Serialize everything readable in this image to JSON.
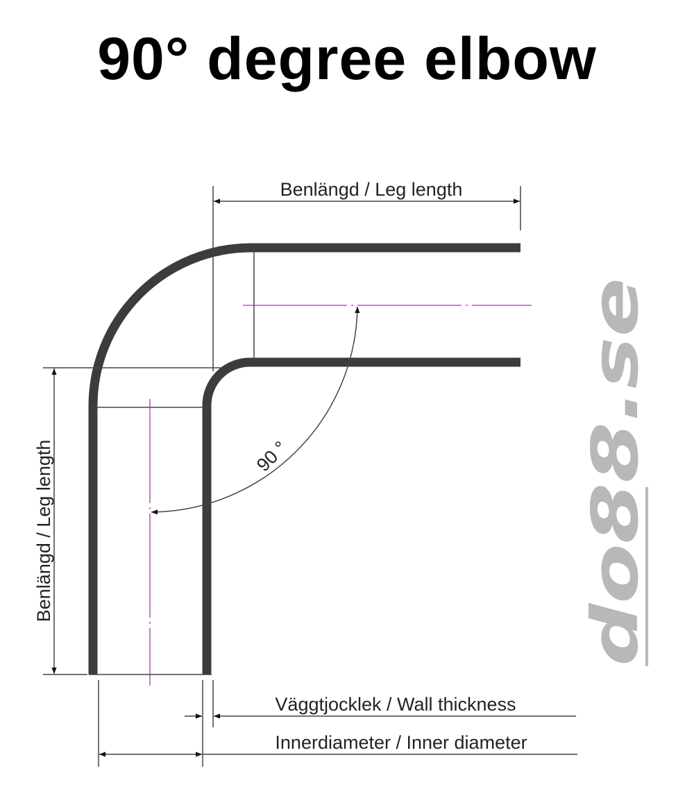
{
  "title": "90° degree elbow",
  "labels": {
    "leg_length_top": "Benlängd / Leg length",
    "leg_length_side": "Benlängd / Leg length",
    "angle": "90 °",
    "wall_thickness": "Väggtjocklek / Wall thickness",
    "inner_diameter": "Innerdiameter / Inner diameter"
  },
  "logo": {
    "text": "do88.se",
    "color": "#b8b8b8"
  },
  "colors": {
    "pipe": "#3c3c3c",
    "centerline": "#9a3fa0"
  }
}
